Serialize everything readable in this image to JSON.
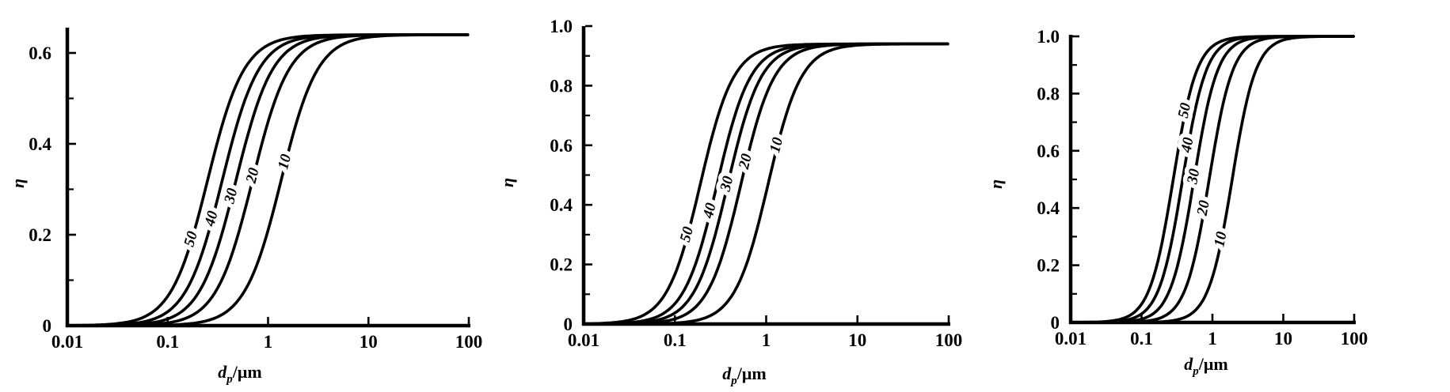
{
  "figure": {
    "background": "#ffffff",
    "ink": "#000000",
    "description_visible_text_only": "",
    "panel_count": 3
  },
  "chart_data": [
    {
      "type": "line",
      "panel": 1,
      "title": "",
      "x_axis": {
        "label": "dp/μm",
        "label_parts": {
          "var": "d",
          "sub": "p",
          "unit": "/μm"
        },
        "scale": "log",
        "range_um": [
          0.01,
          100
        ],
        "ticks": [
          {
            "v": 0.01,
            "label": "0.01"
          },
          {
            "v": 0.1,
            "label": "0.1"
          },
          {
            "v": 1,
            "label": "1"
          },
          {
            "v": 10,
            "label": "10"
          },
          {
            "v": 100,
            "label": "100"
          }
        ]
      },
      "y_axis": {
        "label": "η",
        "range": [
          0,
          0.656
        ],
        "major_ticks": [
          {
            "v": 0,
            "label": "0"
          },
          {
            "v": 0.2,
            "label": "0.2"
          },
          {
            "v": 0.4,
            "label": "0.4"
          },
          {
            "v": 0.6,
            "label": "0.6"
          }
        ],
        "minor_ticks": [
          0.1,
          0.3,
          0.5
        ]
      },
      "model": {
        "form": "logistic-in-log10(d)",
        "formula": "eta(d) = eta_plateau / (1 + exp(-k*(log10(d) - log10(d50_um))))",
        "k": 5.5
      },
      "eta_plateau": 0.64,
      "series": [
        {
          "name": "50",
          "d50_um": 0.25,
          "label_at_eta": 0.19
        },
        {
          "name": "40",
          "d50_um": 0.35,
          "label_at_eta": 0.235
        },
        {
          "name": "30",
          "d50_um": 0.48,
          "label_at_eta": 0.285
        },
        {
          "name": "20",
          "d50_um": 0.7,
          "label_at_eta": 0.33
        },
        {
          "name": "10",
          "d50_um": 1.35,
          "label_at_eta": 0.36
        }
      ]
    },
    {
      "type": "line",
      "panel": 2,
      "title": "",
      "x_axis": {
        "label": "dp/μm",
        "label_parts": {
          "var": "d",
          "sub": "p",
          "unit": "/μm"
        },
        "scale": "log",
        "range_um": [
          0.01,
          100
        ],
        "ticks": [
          {
            "v": 0.01,
            "label": "0.01"
          },
          {
            "v": 0.1,
            "label": "0.1"
          },
          {
            "v": 1,
            "label": "1"
          },
          {
            "v": 10,
            "label": "10"
          },
          {
            "v": 100,
            "label": "100"
          }
        ]
      },
      "y_axis": {
        "label": "η",
        "range": [
          0,
          1.0
        ],
        "major_ticks": [
          {
            "v": 0,
            "label": "0"
          },
          {
            "v": 0.2,
            "label": "0.2"
          },
          {
            "v": 0.4,
            "label": "0.4"
          },
          {
            "v": 0.6,
            "label": "0.6"
          },
          {
            "v": 0.8,
            "label": "0.8"
          },
          {
            "v": 1.0,
            "label": "1.0"
          }
        ],
        "minor_ticks": [
          0.1,
          0.3,
          0.5,
          0.7,
          0.9
        ]
      },
      "model": {
        "form": "logistic-in-log10(d)",
        "formula": "eta(d) = eta_plateau / (1 + exp(-k*(log10(d) - log10(d50_um))))",
        "k": 5.5
      },
      "eta_plateau": 0.94,
      "series": [
        {
          "name": "50",
          "d50_um": 0.19,
          "label_at_eta": 0.3
        },
        {
          "name": "40",
          "d50_um": 0.29,
          "label_at_eta": 0.38
        },
        {
          "name": "30",
          "d50_um": 0.38,
          "label_at_eta": 0.47
        },
        {
          "name": "20",
          "d50_um": 0.53,
          "label_at_eta": 0.545
        },
        {
          "name": "10",
          "d50_um": 1.05,
          "label_at_eta": 0.6
        }
      ]
    },
    {
      "type": "line",
      "panel": 3,
      "title": "",
      "x_axis": {
        "label": "dp/μm",
        "label_parts": {
          "var": "d",
          "sub": "p",
          "unit": "/μm"
        },
        "scale": "log",
        "range_um": [
          0.01,
          100
        ],
        "ticks": [
          {
            "v": 0.01,
            "label": "0.01"
          },
          {
            "v": 0.1,
            "label": "0.1"
          },
          {
            "v": 1,
            "label": "1"
          },
          {
            "v": 10,
            "label": "10"
          },
          {
            "v": 100,
            "label": "100"
          }
        ]
      },
      "y_axis": {
        "label": "η",
        "range": [
          0,
          1.0
        ],
        "major_ticks": [
          {
            "v": 0,
            "label": "0"
          },
          {
            "v": 0.2,
            "label": "0.2"
          },
          {
            "v": 0.4,
            "label": "0.4"
          },
          {
            "v": 0.6,
            "label": "0.6"
          },
          {
            "v": 0.8,
            "label": "0.8"
          },
          {
            "v": 1.0,
            "label": "1.0"
          }
        ],
        "minor_ticks": [
          0.1,
          0.3,
          0.5,
          0.7,
          0.9
        ]
      },
      "model": {
        "form": "logistic-in-log10(d)",
        "formula": "eta(d) = eta_plateau / (1 + exp(-k*(log10(d) - log10(d50_um))))",
        "k": 6.0
      },
      "eta_plateau": 1.0,
      "series": [
        {
          "name": "50",
          "d50_um": 0.28,
          "label_at_eta": 0.74
        },
        {
          "name": "40",
          "d50_um": 0.38,
          "label_at_eta": 0.62
        },
        {
          "name": "30",
          "d50_um": 0.55,
          "label_at_eta": 0.51
        },
        {
          "name": "20",
          "d50_um": 0.9,
          "label_at_eta": 0.4
        },
        {
          "name": "10",
          "d50_um": 1.9,
          "label_at_eta": 0.29
        }
      ]
    }
  ]
}
